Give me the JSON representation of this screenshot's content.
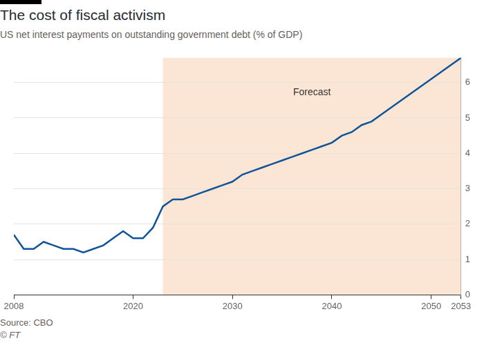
{
  "chart_data": {
    "type": "line",
    "title": "The cost of fiscal activism",
    "subtitle": "US net interest payments on outstanding government debt (% of GDP)",
    "source": "Source: CBO",
    "copyright": "© FT",
    "annotations": [
      {
        "label": "Forecast",
        "xrange": [
          2023,
          2053
        ]
      }
    ],
    "x": [
      2008,
      2009,
      2010,
      2011,
      2012,
      2013,
      2014,
      2015,
      2016,
      2017,
      2018,
      2019,
      2020,
      2021,
      2022,
      2023,
      2024,
      2025,
      2026,
      2027,
      2028,
      2029,
      2030,
      2031,
      2032,
      2033,
      2034,
      2035,
      2036,
      2037,
      2038,
      2039,
      2040,
      2041,
      2042,
      2043,
      2044,
      2045,
      2046,
      2047,
      2048,
      2049,
      2050,
      2051,
      2052,
      2053
    ],
    "values": [
      1.7,
      1.3,
      1.3,
      1.5,
      1.4,
      1.3,
      1.3,
      1.2,
      1.3,
      1.4,
      1.6,
      1.8,
      1.6,
      1.6,
      1.9,
      2.5,
      2.7,
      2.7,
      2.8,
      2.9,
      3.0,
      3.1,
      3.2,
      3.4,
      3.5,
      3.6,
      3.7,
      3.8,
      3.9,
      4.0,
      4.1,
      4.2,
      4.3,
      4.5,
      4.6,
      4.8,
      4.9,
      5.1,
      5.3,
      5.5,
      5.7,
      5.9,
      6.1,
      6.3,
      6.5,
      6.7
    ],
    "color": "#0f5499",
    "xlim": [
      2008,
      2053
    ],
    "xticks": [
      2008,
      2020,
      2030,
      2040,
      2050,
      2053
    ],
    "ylim": [
      0,
      6.7
    ],
    "yticks": [
      0,
      1,
      2,
      3,
      4,
      5,
      6
    ],
    "grid": true
  }
}
